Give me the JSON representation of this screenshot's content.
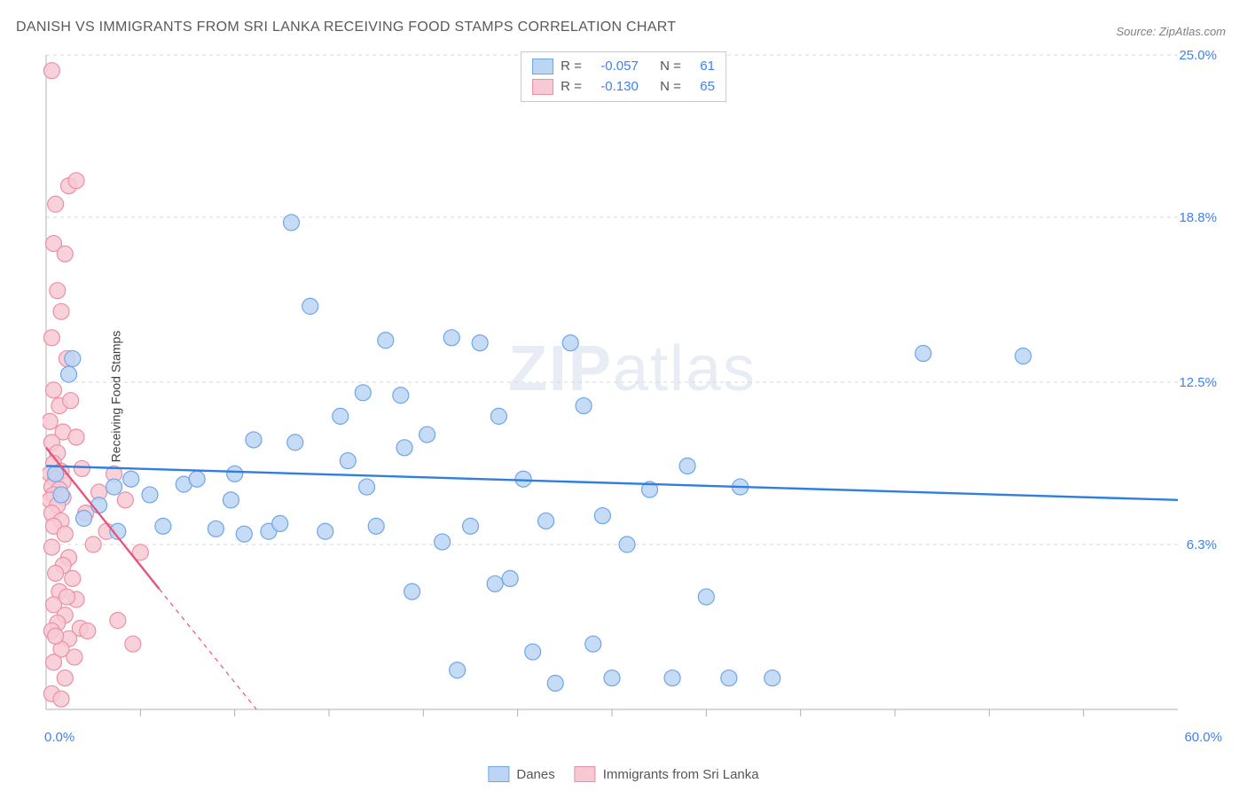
{
  "title": "DANISH VS IMMIGRANTS FROM SRI LANKA RECEIVING FOOD STAMPS CORRELATION CHART",
  "source": "Source: ZipAtlas.com",
  "ylabel": "Receiving Food Stamps",
  "watermark_a": "ZIP",
  "watermark_b": "atlas",
  "chart": {
    "type": "scatter",
    "background_color": "#ffffff",
    "grid_color": "#d8d8d8",
    "axis_color": "#c0c0c0",
    "tick_color": "#b0b0b0",
    "xlim": [
      0,
      60
    ],
    "ylim": [
      0,
      25
    ],
    "x_ticks_minor": [
      5,
      10,
      15,
      20,
      25,
      30,
      35,
      40,
      45,
      50,
      55
    ],
    "y_gridlines": [
      6.3,
      12.5,
      18.8,
      25.0
    ],
    "y_grid_labels": [
      "6.3%",
      "12.5%",
      "18.8%",
      "25.0%"
    ],
    "x_origin_label": "0.0%",
    "x_max_label": "60.0%",
    "marker_radius": 9,
    "marker_stroke_width": 1.2,
    "trend_line_width": 2.4,
    "series": {
      "danes": {
        "label": "Danes",
        "fill": "#bcd5f5",
        "stroke": "#6ea6e8",
        "trend_color": "#2f7fe0",
        "R": "-0.057",
        "N": "61",
        "trend": {
          "x1": 0,
          "y1": 9.3,
          "x2": 60,
          "y2": 8.0
        },
        "points": [
          [
            0.5,
            9.0
          ],
          [
            0.8,
            8.2
          ],
          [
            1.2,
            12.8
          ],
          [
            1.4,
            13.4
          ],
          [
            2.0,
            7.3
          ],
          [
            2.8,
            7.8
          ],
          [
            3.6,
            8.5
          ],
          [
            3.8,
            6.8
          ],
          [
            4.5,
            8.8
          ],
          [
            5.5,
            8.2
          ],
          [
            6.2,
            7.0
          ],
          [
            7.3,
            8.6
          ],
          [
            8.0,
            8.8
          ],
          [
            9.0,
            6.9
          ],
          [
            9.8,
            8.0
          ],
          [
            10.5,
            6.7
          ],
          [
            11.0,
            10.3
          ],
          [
            11.8,
            6.8
          ],
          [
            13.0,
            18.6
          ],
          [
            13.2,
            10.2
          ],
          [
            14.0,
            15.4
          ],
          [
            14.8,
            6.8
          ],
          [
            15.6,
            11.2
          ],
          [
            16.0,
            9.5
          ],
          [
            17.0,
            8.5
          ],
          [
            17.5,
            7.0
          ],
          [
            18.0,
            14.1
          ],
          [
            18.8,
            12.0
          ],
          [
            19.4,
            4.5
          ],
          [
            20.2,
            10.5
          ],
          [
            21.0,
            6.4
          ],
          [
            21.5,
            14.2
          ],
          [
            21.8,
            1.5
          ],
          [
            22.5,
            7.0
          ],
          [
            23.0,
            14.0
          ],
          [
            24.0,
            11.2
          ],
          [
            24.6,
            5.0
          ],
          [
            25.3,
            8.8
          ],
          [
            25.8,
            2.2
          ],
          [
            26.5,
            7.2
          ],
          [
            27.0,
            1.0
          ],
          [
            27.8,
            14.0
          ],
          [
            28.5,
            11.6
          ],
          [
            29.5,
            7.4
          ],
          [
            30.0,
            1.2
          ],
          [
            30.8,
            6.3
          ],
          [
            32.0,
            8.4
          ],
          [
            33.2,
            1.2
          ],
          [
            34.0,
            9.3
          ],
          [
            35.0,
            4.3
          ],
          [
            36.2,
            1.2
          ],
          [
            36.8,
            8.5
          ],
          [
            38.5,
            1.2
          ],
          [
            46.5,
            13.6
          ],
          [
            51.8,
            13.5
          ],
          [
            10.0,
            9.0
          ],
          [
            12.4,
            7.1
          ],
          [
            16.8,
            12.1
          ],
          [
            19.0,
            10.0
          ],
          [
            23.8,
            4.8
          ],
          [
            29.0,
            2.5
          ]
        ]
      },
      "srilanka": {
        "label": "Immigrants from Sri Lanka",
        "fill": "#f7c9d4",
        "stroke": "#ec8fa6",
        "trend_color": "#e6557c",
        "R": "-0.130",
        "N": "65",
        "trend_solid": {
          "x1": 0,
          "y1": 10.0,
          "x2": 6.0,
          "y2": 4.6
        },
        "trend_dash": {
          "x1": 6.0,
          "y1": 4.6,
          "x2": 12.5,
          "y2": -1.2
        },
        "points": [
          [
            0.3,
            24.4
          ],
          [
            1.2,
            20.0
          ],
          [
            1.6,
            20.2
          ],
          [
            0.5,
            19.3
          ],
          [
            0.4,
            17.8
          ],
          [
            1.0,
            17.4
          ],
          [
            0.6,
            16.0
          ],
          [
            0.8,
            15.2
          ],
          [
            0.3,
            14.2
          ],
          [
            1.1,
            13.4
          ],
          [
            0.4,
            12.2
          ],
          [
            0.7,
            11.6
          ],
          [
            0.2,
            11.0
          ],
          [
            0.9,
            10.6
          ],
          [
            0.3,
            10.2
          ],
          [
            0.6,
            9.8
          ],
          [
            0.4,
            9.4
          ],
          [
            0.8,
            9.1
          ],
          [
            0.2,
            9.0
          ],
          [
            0.5,
            8.8
          ],
          [
            0.9,
            8.7
          ],
          [
            0.3,
            8.5
          ],
          [
            0.7,
            8.4
          ],
          [
            0.4,
            8.2
          ],
          [
            0.9,
            8.1
          ],
          [
            0.2,
            8.0
          ],
          [
            0.6,
            7.8
          ],
          [
            0.3,
            7.5
          ],
          [
            0.8,
            7.2
          ],
          [
            0.4,
            7.0
          ],
          [
            1.0,
            6.7
          ],
          [
            0.3,
            6.2
          ],
          [
            1.2,
            5.8
          ],
          [
            0.9,
            5.5
          ],
          [
            0.5,
            5.2
          ],
          [
            1.4,
            5.0
          ],
          [
            0.7,
            4.5
          ],
          [
            1.6,
            4.2
          ],
          [
            0.4,
            4.0
          ],
          [
            1.0,
            3.6
          ],
          [
            0.6,
            3.3
          ],
          [
            1.8,
            3.1
          ],
          [
            0.3,
            3.0
          ],
          [
            1.2,
            2.7
          ],
          [
            0.8,
            2.3
          ],
          [
            2.2,
            3.0
          ],
          [
            0.4,
            1.8
          ],
          [
            1.0,
            1.2
          ],
          [
            2.5,
            6.3
          ],
          [
            2.8,
            8.3
          ],
          [
            3.2,
            6.8
          ],
          [
            3.6,
            9.0
          ],
          [
            3.8,
            3.4
          ],
          [
            4.2,
            8.0
          ],
          [
            4.6,
            2.5
          ],
          [
            5.0,
            6.0
          ],
          [
            1.3,
            11.8
          ],
          [
            1.6,
            10.4
          ],
          [
            1.9,
            9.2
          ],
          [
            2.1,
            7.5
          ],
          [
            0.3,
            0.6
          ],
          [
            0.8,
            0.4
          ],
          [
            1.5,
            2.0
          ],
          [
            1.1,
            4.3
          ],
          [
            0.5,
            2.8
          ]
        ]
      }
    }
  },
  "stats_box": {
    "r_label": "R =",
    "n_label": "N ="
  },
  "legend": {
    "danes": "Danes",
    "srilanka": "Immigrants from Sri Lanka"
  }
}
